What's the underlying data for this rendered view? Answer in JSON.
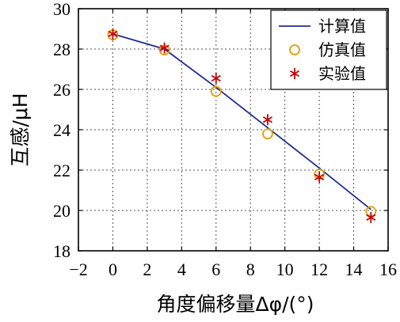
{
  "chart_data": {
    "type": "line",
    "xlabel": "角度偏移量Δφ/(°)",
    "ylabel": "互感/μH",
    "xlim": [
      -2,
      16
    ],
    "ylim": [
      18,
      30
    ],
    "xticks": [
      -2,
      0,
      2,
      4,
      6,
      8,
      10,
      12,
      14,
      16
    ],
    "xtick_labels": [
      "−2",
      "0",
      "2",
      "4",
      "6",
      "8",
      "10",
      "12",
      "14",
      "16"
    ],
    "yticks": [
      18,
      20,
      22,
      24,
      26,
      28,
      30
    ],
    "ytick_labels": [
      "18",
      "20",
      "22",
      "24",
      "26",
      "28",
      "30"
    ],
    "grid": true,
    "legend_position": "top-right",
    "series": [
      {
        "name": "计算值",
        "kind": "line",
        "color": "#1f2f8f",
        "x": [
          0,
          3,
          6,
          9,
          12,
          15
        ],
        "y": [
          28.75,
          28.0,
          26.1,
          24.1,
          22.1,
          20.05
        ]
      },
      {
        "name": "仿真值",
        "kind": "circle",
        "color": "#e0a000",
        "x": [
          0,
          3,
          6,
          9,
          12,
          15
        ],
        "y": [
          28.7,
          27.95,
          25.9,
          23.8,
          21.8,
          19.95
        ]
      },
      {
        "name": "实验值",
        "kind": "asterisk",
        "color": "#cc0000",
        "x": [
          0,
          3,
          6,
          9,
          12,
          15
        ],
        "y": [
          28.75,
          28.05,
          26.55,
          24.5,
          21.65,
          19.65
        ]
      }
    ]
  }
}
